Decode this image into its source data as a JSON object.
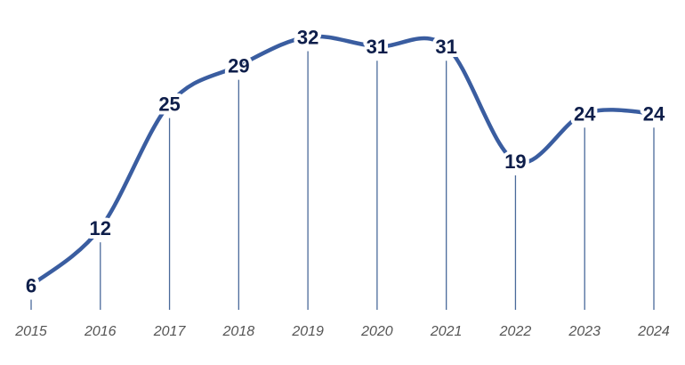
{
  "chart_data": {
    "type": "line",
    "x": [
      "2015",
      "2016",
      "2017",
      "2018",
      "2019",
      "2020",
      "2021",
      "2022",
      "2023",
      "2024"
    ],
    "series": [
      {
        "values": [
          6,
          12,
          25,
          29,
          32,
          31,
          31,
          19,
          24,
          24
        ]
      }
    ],
    "title": "",
    "xlabel": "",
    "ylabel": "",
    "ylim": [
      0,
      34
    ],
    "grid": false,
    "smooth": true,
    "data_labels": true,
    "colors": {
      "line": "#3a5da0",
      "label": "#0e1e4a",
      "drop_line": "#4a6a9a",
      "tick": "#555555"
    }
  }
}
